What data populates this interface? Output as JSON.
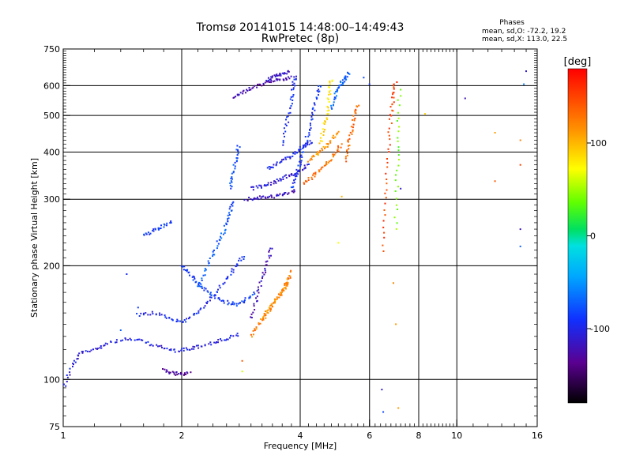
{
  "chart_data": {
    "type": "scatter",
    "title": "Tromsø 20141015 14:48:00–14:49:43",
    "subtitle": "RwPretec (8p)",
    "xlabel": "Frequency [MHz]",
    "ylabel": "Stationary phase Virtual Height [km]",
    "x_scale": "log",
    "y_scale": "log",
    "xlim": [
      1,
      16
    ],
    "ylim": [
      75,
      750
    ],
    "x_ticks": [
      1,
      2,
      4,
      6,
      8,
      10,
      16
    ],
    "x_tick_labels": [
      "1",
      "2",
      "4",
      "6",
      "8",
      "10",
      "16"
    ],
    "y_ticks": [
      75,
      100,
      200,
      300,
      400,
      500,
      600,
      750
    ],
    "y_tick_labels": [
      "75",
      "100",
      "200",
      "300",
      "400",
      "500",
      "600",
      "750"
    ],
    "grid": true,
    "phase_info": {
      "title": "Phases",
      "line_o": "mean, sd,O: -72.2, 19.2",
      "line_x": "mean, sd,X: 113.0, 22.5"
    },
    "colorbar": {
      "label": "[deg]",
      "range": [
        -180,
        180
      ],
      "ticks": [
        100,
        0,
        -100
      ],
      "tick_labels": [
        "100",
        "0",
        "-100"
      ]
    },
    "traces": [
      {
        "x": [
          1.0,
          1.05,
          1.1,
          1.2,
          1.3,
          1.45,
          1.6,
          1.75,
          1.9,
          2.05,
          2.2,
          2.4,
          2.6,
          2.8
        ],
        "y": [
          95,
          108,
          117,
          120,
          125,
          128,
          126,
          122,
          119,
          120,
          122,
          125,
          128,
          132
        ],
        "phase": -105
      },
      {
        "x": [
          1.55,
          1.7,
          1.85,
          2.0,
          2.15,
          2.3,
          2.45,
          2.6,
          2.75,
          2.9
        ],
        "y": [
          148,
          150,
          145,
          142,
          148,
          158,
          170,
          185,
          200,
          215
        ],
        "phase": -95
      },
      {
        "x": [
          2.2,
          2.3,
          2.4,
          2.5,
          2.6,
          2.65,
          2.7
        ],
        "y": [
          175,
          195,
          215,
          235,
          255,
          275,
          300
        ],
        "phase": -75
      },
      {
        "x": [
          2.0,
          2.1,
          2.2,
          2.3,
          2.45,
          2.6,
          2.75,
          2.9,
          3.1
        ],
        "y": [
          200,
          190,
          180,
          172,
          165,
          160,
          158,
          162,
          170
        ],
        "phase": -85
      },
      {
        "x": [
          2.65,
          2.7,
          2.75,
          2.8
        ],
        "y": [
          320,
          350,
          385,
          420
        ],
        "phase": -78
      },
      {
        "x": [
          3.0,
          3.1,
          3.2,
          3.3,
          3.4
        ],
        "y": [
          145,
          165,
          185,
          205,
          225
        ],
        "phase": -120
      },
      {
        "x": [
          3.0,
          3.15,
          3.3,
          3.45,
          3.6,
          3.7,
          3.8
        ],
        "y": [
          130,
          140,
          150,
          160,
          170,
          180,
          195
        ],
        "phase": 125
      },
      {
        "x": [
          3.2,
          3.35,
          3.5,
          3.65,
          3.75
        ],
        "y": [
          145,
          155,
          165,
          175,
          185
        ],
        "phase": 115
      },
      {
        "x": [
          2.9,
          3.1,
          3.3,
          3.5,
          3.7,
          3.9
        ],
        "y": [
          300,
          302,
          304,
          306,
          310,
          318
        ],
        "phase": -118
      },
      {
        "x": [
          3.0,
          3.2,
          3.4,
          3.6,
          3.8,
          4.0,
          4.2
        ],
        "y": [
          320,
          325,
          332,
          340,
          348,
          358,
          370
        ],
        "phase": -108
      },
      {
        "x": [
          3.3,
          3.5,
          3.7,
          3.9,
          4.1,
          4.3
        ],
        "y": [
          360,
          372,
          385,
          400,
          415,
          430
        ],
        "phase": -100
      },
      {
        "x": [
          3.8,
          3.9,
          4.0,
          4.1,
          4.2,
          4.3,
          4.4,
          4.5
        ],
        "y": [
          320,
          345,
          375,
          410,
          450,
          500,
          555,
          610
        ],
        "phase": -90
      },
      {
        "x": [
          3.6,
          3.7,
          3.8,
          3.85,
          3.9
        ],
        "y": [
          420,
          480,
          540,
          600,
          640
        ],
        "phase": -95
      },
      {
        "x": [
          4.1,
          4.3,
          4.5,
          4.7,
          4.9,
          5.1
        ],
        "y": [
          330,
          345,
          360,
          375,
          395,
          420
        ],
        "phase": 130
      },
      {
        "x": [
          4.2,
          4.4,
          4.6,
          4.8,
          5.0
        ],
        "y": [
          380,
          395,
          410,
          430,
          455
        ],
        "phase": 115
      },
      {
        "x": [
          4.5,
          4.6,
          4.7,
          4.75,
          4.8
        ],
        "y": [
          420,
          470,
          520,
          580,
          630
        ],
        "phase": 85
      },
      {
        "x": [
          5.2,
          5.3,
          5.4,
          5.5,
          5.6
        ],
        "y": [
          380,
          420,
          460,
          500,
          540
        ],
        "phase": 135
      },
      {
        "x": [
          4.8,
          4.9,
          5.0,
          5.1,
          5.2,
          5.3
        ],
        "y": [
          520,
          560,
          590,
          610,
          630,
          650
        ],
        "phase": -70
      },
      {
        "x": [
          2.7,
          2.85,
          3.0,
          3.2,
          3.4,
          3.6,
          3.8
        ],
        "y": [
          560,
          575,
          590,
          605,
          615,
          625,
          630
        ],
        "phase": -125
      },
      {
        "x": [
          3.3,
          3.45,
          3.6,
          3.75
        ],
        "y": [
          620,
          635,
          645,
          655
        ],
        "phase": -112
      },
      {
        "x": [
          1.8,
          1.9,
          2.0,
          2.1
        ],
        "y": [
          106,
          104,
          103,
          104
        ],
        "phase": -130
      },
      {
        "x": [
          1.6,
          1.7,
          1.8,
          1.9
        ],
        "y": [
          240,
          248,
          255,
          262
        ],
        "phase": -90
      },
      {
        "x": [
          6.5,
          6.6,
          6.7,
          6.8,
          6.9,
          7.0
        ],
        "y": [
          220,
          300,
          400,
          500,
          560,
          620
        ],
        "phase": 150
      },
      {
        "x": [
          7.0,
          7.05,
          7.1,
          7.15
        ],
        "y": [
          250,
          350,
          450,
          600
        ],
        "phase": 40
      }
    ],
    "isolated": [
      {
        "x": 1.45,
        "y": 190,
        "phase": -95
      },
      {
        "x": 1.55,
        "y": 155,
        "phase": -88
      },
      {
        "x": 1.4,
        "y": 135,
        "phase": -70
      },
      {
        "x": 2.85,
        "y": 105,
        "phase": 60
      },
      {
        "x": 2.85,
        "y": 112,
        "phase": 140
      },
      {
        "x": 6.45,
        "y": 94,
        "phase": -110
      },
      {
        "x": 6.5,
        "y": 82,
        "phase": -80
      },
      {
        "x": 7.1,
        "y": 84,
        "phase": 110
      },
      {
        "x": 6.9,
        "y": 180,
        "phase": 120
      },
      {
        "x": 7.0,
        "y": 140,
        "phase": 110
      },
      {
        "x": 7.2,
        "y": 320,
        "phase": -110
      },
      {
        "x": 8.3,
        "y": 505,
        "phase": 90
      },
      {
        "x": 10.5,
        "y": 555,
        "phase": -120
      },
      {
        "x": 12.5,
        "y": 450,
        "phase": 110
      },
      {
        "x": 12.5,
        "y": 335,
        "phase": 140
      },
      {
        "x": 14.5,
        "y": 250,
        "phase": -120
      },
      {
        "x": 14.5,
        "y": 225,
        "phase": -70
      },
      {
        "x": 14.5,
        "y": 370,
        "phase": 150
      },
      {
        "x": 14.5,
        "y": 430,
        "phase": 120
      },
      {
        "x": 15.0,
        "y": 655,
        "phase": -110
      },
      {
        "x": 14.8,
        "y": 605,
        "phase": -60
      },
      {
        "x": 5.8,
        "y": 630,
        "phase": -80
      },
      {
        "x": 6.0,
        "y": 605,
        "phase": -90
      },
      {
        "x": 5.1,
        "y": 305,
        "phase": 100
      },
      {
        "x": 5.0,
        "y": 230,
        "phase": 70
      }
    ]
  }
}
